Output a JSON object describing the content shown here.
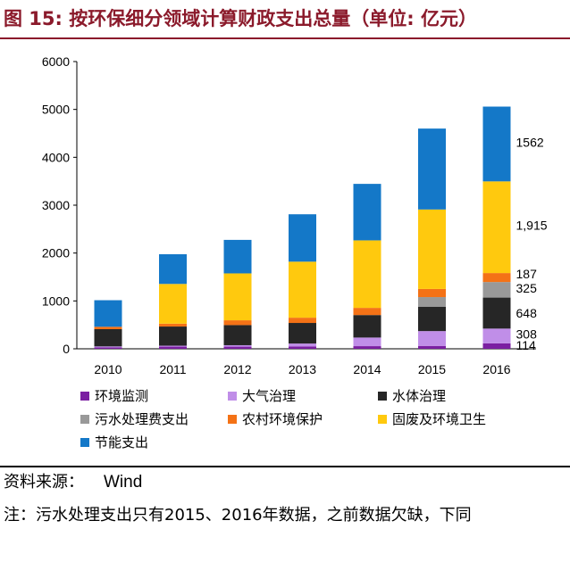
{
  "title": "图 15: 按环保细分领域计算财政支出总量（单位: 亿元）",
  "source": {
    "label": "资料来源：",
    "value": "Wind"
  },
  "note": "注：污水处理支出只有2015、2016年数据，之前数据欠缺，下同",
  "chart_data": {
    "type": "bar",
    "stacked": true,
    "categories": [
      "2010",
      "2011",
      "2012",
      "2013",
      "2014",
      "2015",
      "2016"
    ],
    "ylim": [
      0,
      6000
    ],
    "yticks": [
      0,
      1000,
      2000,
      3000,
      4000,
      5000,
      6000
    ],
    "series": [
      {
        "name": "环境监测",
        "color": "#7b1fa2",
        "values": [
          30,
          45,
          45,
          50,
          55,
          60,
          114
        ]
      },
      {
        "name": "大气治理",
        "color": "#c08ee8",
        "values": [
          20,
          20,
          30,
          60,
          180,
          310,
          308
        ]
      },
      {
        "name": "水体治理",
        "color": "#262626",
        "values": [
          360,
          400,
          420,
          430,
          470,
          510,
          648
        ]
      },
      {
        "name": "污水处理费支出",
        "color": "#999999",
        "values": [
          0,
          0,
          0,
          0,
          0,
          200,
          325
        ]
      },
      {
        "name": "农村环境保护",
        "color": "#f47216",
        "values": [
          50,
          60,
          100,
          110,
          150,
          170,
          187
        ]
      },
      {
        "name": "固废及环境卫生",
        "color": "#ffc90e",
        "values": [
          0,
          830,
          980,
          1170,
          1410,
          1660,
          1915
        ]
      },
      {
        "name": "节能支出",
        "color": "#1478c8",
        "values": [
          555,
          620,
          700,
          990,
          1180,
          1690,
          1562
        ]
      }
    ],
    "data_labels": [
      "114",
      "308",
      "648",
      "325",
      "187",
      "1,915",
      "1562"
    ]
  }
}
